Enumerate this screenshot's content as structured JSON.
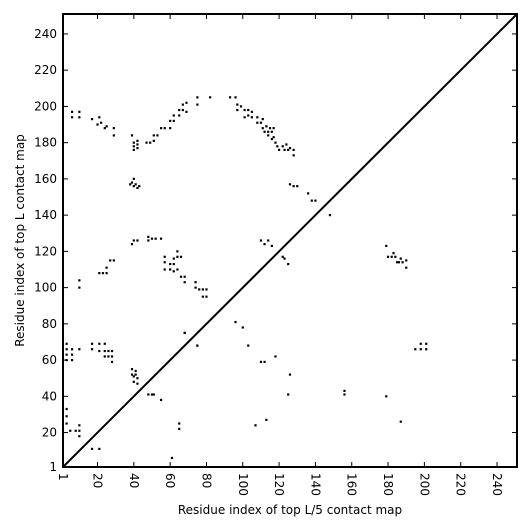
{
  "chart_data": {
    "type": "scatter",
    "title": "",
    "xlabel": "Residue index of top L/5 contact map",
    "ylabel": "Residue index of top L contact map",
    "xlim": [
      1,
      251
    ],
    "ylim": [
      1,
      251
    ],
    "xticks": [
      1,
      20,
      40,
      60,
      80,
      100,
      120,
      140,
      160,
      180,
      200,
      220,
      240
    ],
    "yticks": [
      1,
      20,
      40,
      60,
      80,
      100,
      120,
      140,
      160,
      180,
      200,
      220,
      240
    ],
    "diagonal": true,
    "grid": false,
    "marker_color": "#000000",
    "upper_contacts": [
      [
        6,
        194
      ],
      [
        6,
        197
      ],
      [
        10,
        194
      ],
      [
        10,
        197
      ],
      [
        17,
        193
      ],
      [
        20,
        190
      ],
      [
        21,
        194
      ],
      [
        22,
        191
      ],
      [
        24,
        188
      ],
      [
        25,
        189
      ],
      [
        29,
        184
      ],
      [
        29,
        188
      ],
      [
        39,
        184
      ],
      [
        40,
        176
      ],
      [
        40,
        178
      ],
      [
        40,
        180
      ],
      [
        42,
        177
      ],
      [
        42,
        179
      ],
      [
        42,
        181
      ],
      [
        47,
        180
      ],
      [
        49,
        180
      ],
      [
        51,
        181
      ],
      [
        51,
        184
      ],
      [
        53,
        184
      ],
      [
        55,
        188
      ],
      [
        57,
        188
      ],
      [
        60,
        188
      ],
      [
        60,
        192
      ],
      [
        62,
        195
      ],
      [
        62,
        192
      ],
      [
        65,
        195
      ],
      [
        65,
        198
      ],
      [
        67,
        198
      ],
      [
        67,
        201
      ],
      [
        69,
        197
      ],
      [
        69,
        202
      ],
      [
        75,
        201
      ],
      [
        75,
        205
      ],
      [
        82,
        205
      ],
      [
        93,
        205
      ],
      [
        96,
        205
      ],
      [
        97,
        201
      ],
      [
        97,
        198
      ],
      [
        99,
        200
      ],
      [
        101,
        198
      ],
      [
        101,
        194
      ],
      [
        103,
        198
      ],
      [
        103,
        195
      ],
      [
        105,
        197
      ],
      [
        105,
        194
      ],
      [
        108,
        194
      ],
      [
        108,
        191
      ],
      [
        110,
        191
      ],
      [
        111,
        193
      ],
      [
        111,
        188
      ],
      [
        112,
        186
      ],
      [
        113,
        189
      ],
      [
        114,
        186
      ],
      [
        114,
        184
      ],
      [
        115,
        188
      ],
      [
        116,
        186
      ],
      [
        116,
        182
      ],
      [
        117,
        188
      ],
      [
        117,
        183
      ],
      [
        118,
        180
      ],
      [
        119,
        178
      ],
      [
        120,
        176
      ],
      [
        122,
        178
      ],
      [
        123,
        176
      ],
      [
        124,
        179
      ],
      [
        125,
        176
      ],
      [
        126,
        177
      ],
      [
        128,
        176
      ],
      [
        128,
        173
      ],
      [
        38,
        157
      ],
      [
        39,
        158
      ],
      [
        40,
        156
      ],
      [
        41,
        157
      ],
      [
        42,
        155
      ],
      [
        43,
        156
      ],
      [
        40,
        160
      ],
      [
        126,
        157
      ],
      [
        128,
        156
      ],
      [
        130,
        156
      ],
      [
        136,
        152
      ],
      [
        138,
        148
      ],
      [
        140,
        148
      ],
      [
        148,
        140
      ],
      [
        39,
        124
      ],
      [
        40,
        126
      ],
      [
        42,
        126
      ],
      [
        48,
        126
      ],
      [
        48,
        128
      ],
      [
        50,
        127
      ],
      [
        52,
        127
      ],
      [
        55,
        127
      ],
      [
        57,
        117
      ],
      [
        57,
        114
      ],
      [
        57,
        110
      ],
      [
        60,
        113
      ],
      [
        60,
        110
      ],
      [
        62,
        116
      ],
      [
        62,
        113
      ],
      [
        62,
        109
      ],
      [
        64,
        120
      ],
      [
        64,
        117
      ],
      [
        64,
        110
      ],
      [
        66,
        117
      ],
      [
        66,
        106
      ],
      [
        68,
        106
      ],
      [
        68,
        103
      ],
      [
        74,
        100
      ],
      [
        74,
        103
      ],
      [
        76,
        99
      ],
      [
        78,
        99
      ],
      [
        78,
        95
      ],
      [
        80,
        99
      ],
      [
        80,
        95
      ],
      [
        110,
        126
      ],
      [
        112,
        124
      ],
      [
        114,
        126
      ],
      [
        116,
        123
      ],
      [
        122,
        117
      ],
      [
        123,
        116
      ],
      [
        125,
        113
      ],
      [
        21,
        108
      ],
      [
        23,
        108
      ],
      [
        25,
        108
      ],
      [
        25,
        111
      ],
      [
        27,
        115
      ],
      [
        29,
        115
      ],
      [
        10,
        100
      ],
      [
        10,
        104
      ],
      [
        68,
        75
      ],
      [
        75,
        68
      ],
      [
        96,
        81
      ],
      [
        100,
        78
      ]
    ],
    "lower_contacts": [
      [
        3,
        25
      ],
      [
        3,
        29
      ],
      [
        3,
        33
      ],
      [
        5,
        21
      ],
      [
        8,
        21
      ],
      [
        10,
        18
      ],
      [
        10,
        21
      ],
      [
        10,
        24
      ],
      [
        17,
        11
      ],
      [
        21,
        11
      ],
      [
        3,
        60
      ],
      [
        3,
        63
      ],
      [
        3,
        66
      ],
      [
        3,
        69
      ],
      [
        6,
        60
      ],
      [
        6,
        63
      ],
      [
        6,
        66
      ],
      [
        10,
        66
      ],
      [
        17,
        66
      ],
      [
        17,
        69
      ],
      [
        21,
        65
      ],
      [
        21,
        69
      ],
      [
        24,
        62
      ],
      [
        24,
        65
      ],
      [
        24,
        69
      ],
      [
        26,
        62
      ],
      [
        26,
        65
      ],
      [
        28,
        59
      ],
      [
        28,
        62
      ],
      [
        28,
        65
      ],
      [
        39,
        52
      ],
      [
        39,
        55
      ],
      [
        40,
        48
      ],
      [
        40,
        51
      ],
      [
        41,
        52
      ],
      [
        41,
        54
      ],
      [
        42,
        47
      ],
      [
        42,
        50
      ],
      [
        48,
        41
      ],
      [
        50,
        41
      ],
      [
        51,
        41
      ],
      [
        55,
        38
      ],
      [
        61,
        6
      ],
      [
        65,
        22
      ],
      [
        65,
        25
      ],
      [
        68,
        75
      ],
      [
        75,
        68
      ],
      [
        103,
        68
      ],
      [
        107,
        24
      ],
      [
        110,
        59
      ],
      [
        112,
        59
      ],
      [
        113,
        27
      ],
      [
        118,
        62
      ],
      [
        125,
        41
      ],
      [
        126,
        52
      ],
      [
        156,
        41
      ],
      [
        156,
        43
      ],
      [
        179,
        40
      ],
      [
        179,
        123
      ],
      [
        180,
        117
      ],
      [
        182,
        117
      ],
      [
        183,
        119
      ],
      [
        184,
        117
      ],
      [
        185,
        114
      ],
      [
        186,
        114
      ],
      [
        187,
        116
      ],
      [
        188,
        114
      ],
      [
        190,
        111
      ],
      [
        190,
        115
      ],
      [
        187,
        26
      ],
      [
        195,
        66
      ],
      [
        198,
        66
      ],
      [
        198,
        69
      ],
      [
        201,
        66
      ],
      [
        201,
        69
      ]
    ]
  }
}
